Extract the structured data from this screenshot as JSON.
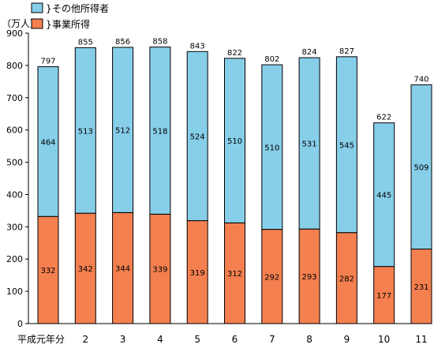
{
  "chart_data": {
    "type": "bar",
    "stacked": true,
    "unit_label": "（万人）",
    "ylim": [
      0,
      900
    ],
    "yticks": [
      0,
      100,
      200,
      300,
      400,
      500,
      600,
      700,
      800,
      900
    ],
    "categories": [
      "平成元年分",
      "2",
      "3",
      "4",
      "5",
      "6",
      "7",
      "8",
      "9",
      "10",
      "11"
    ],
    "series": [
      {
        "name": "事業所得",
        "color": "#f47f4f",
        "values": [
          332,
          342,
          344,
          339,
          319,
          312,
          292,
          293,
          282,
          177,
          231
        ]
      },
      {
        "name": "その他所得者",
        "color": "#87cee9",
        "values": [
          464,
          513,
          512,
          518,
          524,
          510,
          510,
          531,
          545,
          445,
          509
        ]
      }
    ],
    "totals": [
      797,
      855,
      856,
      858,
      843,
      822,
      802,
      824,
      827,
      622,
      740
    ],
    "legend": {
      "position": "top-left",
      "items": [
        "その他所得者",
        "事業所得"
      ]
    }
  }
}
